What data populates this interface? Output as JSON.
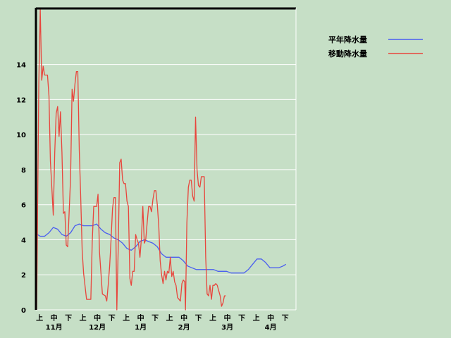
{
  "chart_data": {
    "type": "line",
    "title": "",
    "xlabel": "",
    "ylabel": "",
    "ylim": [
      0,
      17.2
    ],
    "yticks": [
      0,
      2,
      4,
      6,
      8,
      10,
      12,
      14
    ],
    "grid": true,
    "legend_position": "top-right",
    "x_period_labels": [
      "上",
      "中",
      "下",
      "上",
      "中",
      "下",
      "上",
      "中",
      "下",
      "上",
      "中",
      "下",
      "上",
      "中",
      "下",
      "上",
      "中",
      "下"
    ],
    "x_month_labels": [
      "11月",
      "12月",
      "1月",
      "2月",
      "3月",
      "4月"
    ],
    "x_domain": [
      0,
      18
    ],
    "series": [
      {
        "name": "平年降水量",
        "color": "#4a5ef0",
        "points": [
          [
            0.1,
            4.3
          ],
          [
            0.3,
            4.2
          ],
          [
            0.6,
            4.2
          ],
          [
            0.9,
            4.4
          ],
          [
            1.2,
            4.7
          ],
          [
            1.5,
            4.6
          ],
          [
            1.8,
            4.3
          ],
          [
            2.1,
            4.2
          ],
          [
            2.4,
            4.4
          ],
          [
            2.7,
            4.8
          ],
          [
            3.0,
            4.9
          ],
          [
            3.3,
            4.8
          ],
          [
            3.6,
            4.8
          ],
          [
            3.9,
            4.8
          ],
          [
            4.2,
            4.9
          ],
          [
            4.5,
            4.6
          ],
          [
            4.8,
            4.4
          ],
          [
            5.1,
            4.3
          ],
          [
            5.4,
            4.1
          ],
          [
            5.7,
            4.0
          ],
          [
            6.0,
            3.8
          ],
          [
            6.3,
            3.5
          ],
          [
            6.6,
            3.4
          ],
          [
            6.9,
            3.6
          ],
          [
            7.2,
            3.9
          ],
          [
            7.5,
            4.0
          ],
          [
            7.8,
            3.9
          ],
          [
            8.1,
            3.8
          ],
          [
            8.4,
            3.6
          ],
          [
            8.7,
            3.2
          ],
          [
            9.0,
            3.0
          ],
          [
            9.3,
            3.0
          ],
          [
            9.6,
            3.0
          ],
          [
            9.9,
            3.0
          ],
          [
            10.2,
            2.8
          ],
          [
            10.5,
            2.5
          ],
          [
            10.8,
            2.4
          ],
          [
            11.1,
            2.3
          ],
          [
            11.4,
            2.3
          ],
          [
            11.7,
            2.3
          ],
          [
            12.0,
            2.3
          ],
          [
            12.3,
            2.3
          ],
          [
            12.6,
            2.2
          ],
          [
            12.9,
            2.2
          ],
          [
            13.2,
            2.2
          ],
          [
            13.5,
            2.1
          ],
          [
            13.8,
            2.1
          ],
          [
            14.1,
            2.1
          ],
          [
            14.4,
            2.1
          ],
          [
            14.7,
            2.3
          ],
          [
            15.0,
            2.6
          ],
          [
            15.3,
            2.9
          ],
          [
            15.6,
            2.9
          ],
          [
            15.9,
            2.7
          ],
          [
            16.2,
            2.4
          ],
          [
            16.5,
            2.4
          ],
          [
            16.8,
            2.4
          ],
          [
            17.1,
            2.5
          ],
          [
            17.3,
            2.6
          ]
        ]
      },
      {
        "name": "移動降水量",
        "color": "#e8453c",
        "points": [
          [
            0.05,
            0.0
          ],
          [
            0.2,
            13.0
          ],
          [
            0.3,
            17.2
          ],
          [
            0.4,
            13.1
          ],
          [
            0.5,
            13.9
          ],
          [
            0.6,
            13.4
          ],
          [
            0.8,
            13.4
          ],
          [
            0.9,
            12.2
          ],
          [
            1.0,
            8.5
          ],
          [
            1.1,
            7.0
          ],
          [
            1.2,
            5.4
          ],
          [
            1.3,
            9.0
          ],
          [
            1.4,
            11.2
          ],
          [
            1.5,
            11.6
          ],
          [
            1.6,
            9.9
          ],
          [
            1.7,
            11.3
          ],
          [
            1.8,
            9.0
          ],
          [
            1.9,
            5.5
          ],
          [
            2.0,
            5.6
          ],
          [
            2.1,
            3.7
          ],
          [
            2.2,
            3.6
          ],
          [
            2.4,
            7.6
          ],
          [
            2.5,
            12.6
          ],
          [
            2.6,
            11.9
          ],
          [
            2.7,
            12.9
          ],
          [
            2.8,
            13.6
          ],
          [
            2.9,
            13.6
          ],
          [
            3.0,
            9.1
          ],
          [
            3.1,
            6.5
          ],
          [
            3.2,
            3.4
          ],
          [
            3.3,
            2.1
          ],
          [
            3.5,
            0.6
          ],
          [
            3.7,
            0.6
          ],
          [
            3.8,
            0.6
          ],
          [
            3.9,
            3.9
          ],
          [
            4.0,
            5.9
          ],
          [
            4.2,
            5.9
          ],
          [
            4.3,
            6.6
          ],
          [
            4.4,
            3.3
          ],
          [
            4.6,
            0.9
          ],
          [
            4.8,
            0.8
          ],
          [
            4.9,
            0.5
          ],
          [
            5.0,
            1.4
          ],
          [
            5.1,
            2.5
          ],
          [
            5.2,
            4.0
          ],
          [
            5.3,
            5.8
          ],
          [
            5.4,
            6.4
          ],
          [
            5.5,
            6.4
          ],
          [
            5.6,
            0.0
          ],
          [
            5.7,
            3.6
          ],
          [
            5.8,
            8.4
          ],
          [
            5.9,
            8.6
          ],
          [
            6.0,
            7.4
          ],
          [
            6.1,
            7.2
          ],
          [
            6.2,
            7.2
          ],
          [
            6.3,
            6.2
          ],
          [
            6.4,
            5.9
          ],
          [
            6.5,
            1.8
          ],
          [
            6.6,
            1.4
          ],
          [
            6.7,
            2.2
          ],
          [
            6.8,
            2.2
          ],
          [
            6.9,
            4.3
          ],
          [
            7.0,
            4.0
          ],
          [
            7.1,
            3.8
          ],
          [
            7.2,
            3.0
          ],
          [
            7.3,
            4.1
          ],
          [
            7.4,
            5.9
          ],
          [
            7.5,
            3.8
          ],
          [
            7.6,
            4.0
          ],
          [
            7.7,
            5.0
          ],
          [
            7.8,
            5.9
          ],
          [
            7.9,
            5.9
          ],
          [
            8.0,
            5.6
          ],
          [
            8.1,
            6.3
          ],
          [
            8.2,
            6.8
          ],
          [
            8.3,
            6.8
          ],
          [
            8.4,
            6.0
          ],
          [
            8.5,
            4.8
          ],
          [
            8.6,
            2.8
          ],
          [
            8.7,
            2.0
          ],
          [
            8.8,
            1.5
          ],
          [
            8.9,
            2.2
          ],
          [
            9.0,
            1.7
          ],
          [
            9.1,
            2.2
          ],
          [
            9.2,
            2.1
          ],
          [
            9.3,
            3.0
          ],
          [
            9.4,
            1.9
          ],
          [
            9.5,
            2.2
          ],
          [
            9.6,
            1.6
          ],
          [
            9.7,
            1.4
          ],
          [
            9.8,
            0.7
          ],
          [
            9.9,
            0.6
          ],
          [
            10.0,
            0.5
          ],
          [
            10.1,
            1.5
          ],
          [
            10.2,
            1.7
          ],
          [
            10.3,
            1.6
          ],
          [
            10.35,
            0.0
          ],
          [
            10.45,
            5.0
          ],
          [
            10.55,
            7.0
          ],
          [
            10.65,
            7.4
          ],
          [
            10.75,
            7.4
          ],
          [
            10.85,
            6.5
          ],
          [
            10.95,
            6.2
          ],
          [
            11.05,
            11.0
          ],
          [
            11.15,
            8.0
          ],
          [
            11.25,
            7.1
          ],
          [
            11.35,
            7.0
          ],
          [
            11.45,
            7.6
          ],
          [
            11.55,
            7.6
          ],
          [
            11.65,
            7.6
          ],
          [
            11.75,
            3.0
          ],
          [
            11.85,
            0.9
          ],
          [
            11.95,
            0.8
          ],
          [
            12.05,
            1.4
          ],
          [
            12.15,
            0.6
          ],
          [
            12.25,
            1.4
          ],
          [
            12.35,
            1.4
          ],
          [
            12.45,
            1.5
          ],
          [
            12.55,
            1.4
          ],
          [
            12.65,
            1.1
          ],
          [
            12.75,
            0.8
          ],
          [
            12.85,
            0.2
          ],
          [
            12.95,
            0.4
          ],
          [
            13.05,
            0.8
          ],
          [
            13.15,
            0.8
          ]
        ]
      }
    ]
  }
}
